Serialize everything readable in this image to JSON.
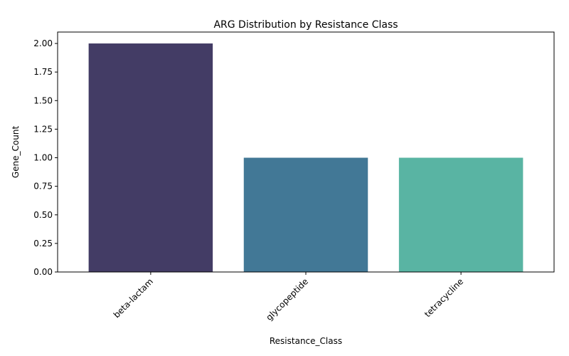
{
  "chart_data": {
    "type": "bar",
    "title": "ARG Distribution by Resistance Class",
    "xlabel": "Resistance_Class",
    "ylabel": "Gene_Count",
    "categories": [
      "beta-lactam",
      "glycopeptide",
      "tetracycline"
    ],
    "values": [
      2,
      1,
      1
    ],
    "colors": [
      "#433c65",
      "#427896",
      "#59b4a3"
    ],
    "ylim": [
      0,
      2.1
    ],
    "yticks": [
      "0.00",
      "0.25",
      "0.50",
      "0.75",
      "1.00",
      "1.25",
      "1.50",
      "1.75",
      "2.00"
    ],
    "xtick_rotation": 45,
    "grid": false,
    "legend": "none"
  }
}
